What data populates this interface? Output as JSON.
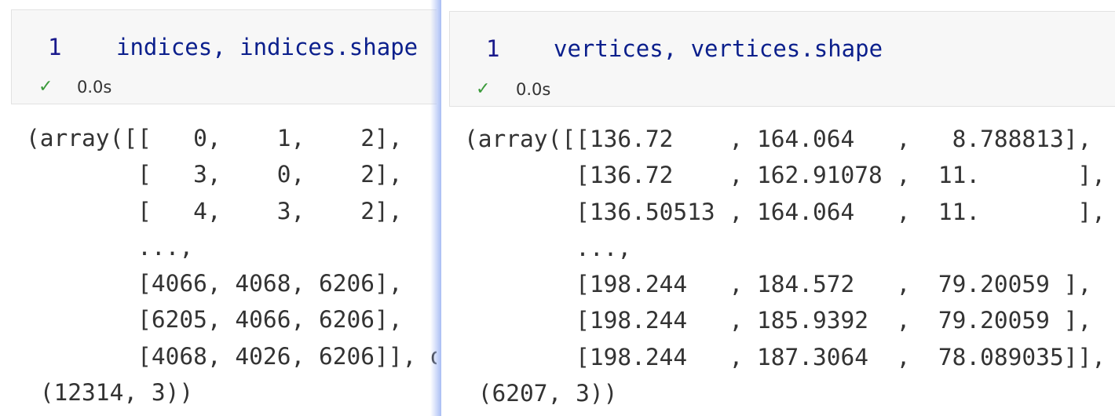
{
  "left_cell": {
    "line_number": "1",
    "code": "indices, indices.shape",
    "status_icon": "check-icon",
    "exec_time": "0.0s",
    "output": "(array([[   0,    1,    2],\n        [   3,    0,    2],\n        [   4,    3,    2],\n        ...,\n        [4066, 4068, 6206],\n        [6205, 4066, 6206],\n        [4068, 4026, 6206]], d\n (12314, 3))"
  },
  "right_cell": {
    "line_number": "1",
    "code": "vertices, vertices.shape",
    "status_icon": "check-icon",
    "exec_time": "0.0s",
    "output": "(array([[136.72    , 164.064   ,   8.788813],\n        [136.72    , 162.91078 ,  11.       ],\n        [136.50513 , 164.064   ,  11.       ],\n        ...,\n        [198.244   , 184.572   ,  79.20059 ],\n        [198.244   , 185.9392  ,  79.20059 ],\n        [198.244   , 187.3064  ,  78.089035]],\n (6207, 3))"
  }
}
